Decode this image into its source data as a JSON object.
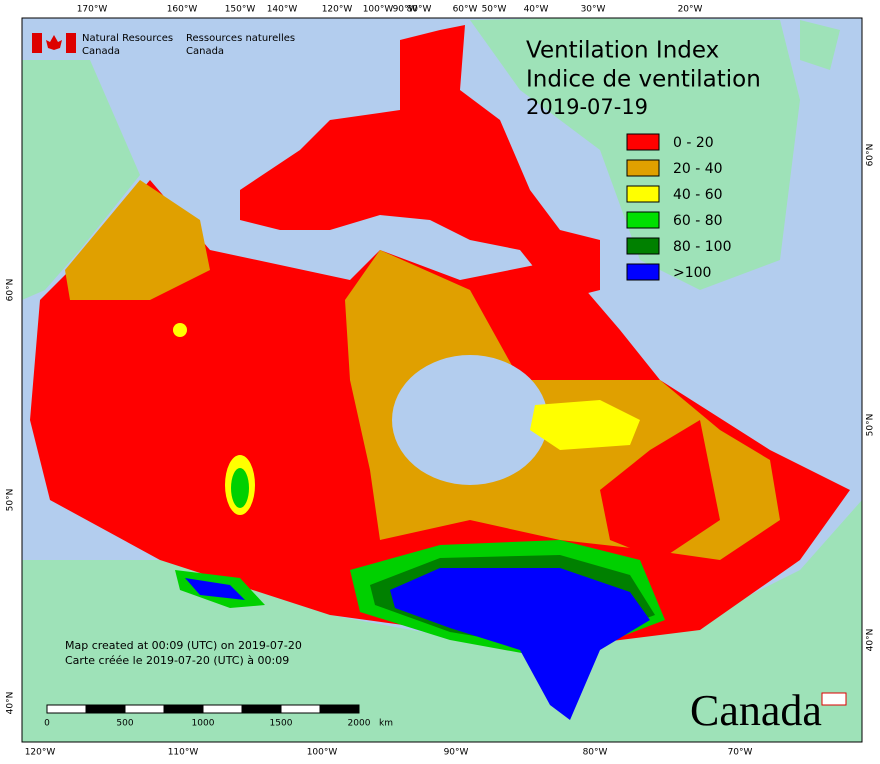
{
  "header": {
    "agency_en": [
      "Natural Resources",
      "Canada"
    ],
    "agency_fr": [
      "Ressources naturelles",
      "Canada"
    ]
  },
  "title": [
    "Ventilation Index",
    "Indice de ventilation",
    "2019-07-19"
  ],
  "legend": [
    {
      "label": "0 - 20",
      "color": "#ff0000"
    },
    {
      "label": "20 - 40",
      "color": "#e0a000"
    },
    {
      "label": "40 - 60",
      "color": "#ffff00"
    },
    {
      "label": "60 - 80",
      "color": "#00e000"
    },
    {
      "label": "80 - 100",
      "color": "#008000"
    },
    {
      "label": ">100",
      "color": "#0000ff"
    }
  ],
  "credits": [
    "Map created at 00:09 (UTC) on 2019-07-20",
    "Carte créée le 2019-07-20 (UTC) à 00:09"
  ],
  "scale": {
    "labels": [
      "0",
      "500",
      "1000",
      "1500",
      "2000"
    ],
    "unit": "km"
  },
  "graticule": {
    "top": [
      "170°W",
      "160°W",
      "150°W",
      "140°W",
      "120°W",
      "100°W",
      "90°W",
      "80°W",
      "60°W",
      "50°W",
      "40°W",
      "30°W",
      "20°W"
    ],
    "bottom": [
      "120°W",
      "110°W",
      "100°W",
      "90°W",
      "80°W",
      "70°W"
    ],
    "left": [
      "60°N",
      "50°N",
      "40°N"
    ],
    "right": [
      "60°N",
      "50°N",
      "40°N"
    ]
  },
  "wordmark": "Canada"
}
